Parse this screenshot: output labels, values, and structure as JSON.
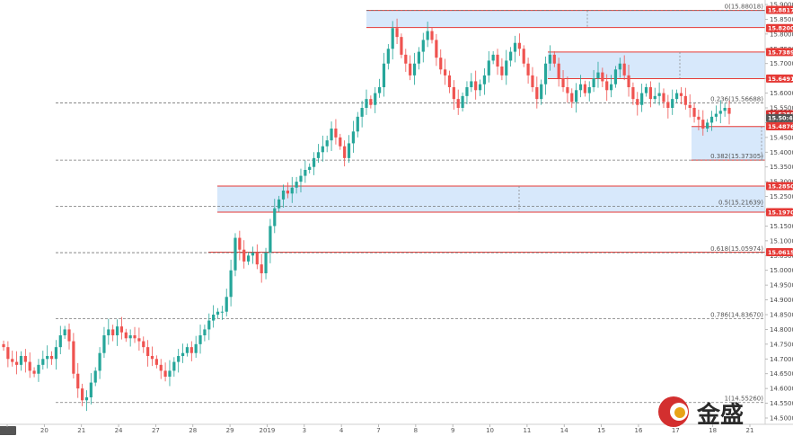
{
  "colors": {
    "up": "#26a69a",
    "down": "#ef5350",
    "zone_fill": "#d7e8fb",
    "zone_edge": "#e53935",
    "fib_line": "#777777",
    "tag_bg": "#e53935",
    "price_tag_bg": "#d32f2f",
    "last_tag_bg": "#555555",
    "logo_red": "#d32f2f",
    "logo_gold": "#e8a317"
  },
  "chart_data": {
    "type": "candlestick",
    "price_axis": {
      "ticks": [
        "15.90000",
        "15.85000",
        "15.80000",
        "15.75000",
        "15.70000",
        "15.65000",
        "15.60000",
        "15.55000",
        "15.50000",
        "15.45000",
        "15.40000",
        "15.35000",
        "15.30000",
        "15.25000",
        "15.20000",
        "15.15000",
        "15.10000",
        "15.05000",
        "15.00000",
        "14.95000",
        "14.90000",
        "14.85000",
        "14.80000",
        "14.75000",
        "14.70000",
        "14.65000",
        "14.60000",
        "14.55000",
        "14.50000"
      ],
      "range": [
        14.5,
        15.9
      ]
    },
    "time_axis": {
      "labels": [
        "05:00",
        "20",
        "21",
        "24",
        "27",
        "28",
        "29",
        "2019",
        "3",
        "4",
        "7",
        "8",
        "9",
        "10",
        "11",
        "14",
        "15",
        "16",
        "17",
        "18",
        "21"
      ],
      "highlighted": [
        "05:00"
      ]
    },
    "fib_levels": [
      {
        "label": "0(15.88018)",
        "value": 15.88018
      },
      {
        "label": "0.236(15.56688)",
        "value": 15.56688
      },
      {
        "label": "0.382(15.37305)",
        "value": 15.37305
      },
      {
        "label": "0.5(15.21639)",
        "value": 15.21639
      },
      {
        "label": "0.618(15.05974)",
        "value": 15.05974
      },
      {
        "label": "0.786(14.83670)",
        "value": 14.8367
      },
      {
        "label": "1(14.55260)",
        "value": 14.5526
      }
    ],
    "zones": [
      {
        "top": 15.88,
        "bottom": 15.822
      },
      {
        "top": 15.739,
        "bottom": 15.649
      },
      {
        "top": 15.487,
        "bottom": 15.373
      },
      {
        "top": 15.2851,
        "bottom": 15.197
      }
    ],
    "level_tags": [
      {
        "text": "15.88178",
        "value": 15.88178
      },
      {
        "text": "15.82001",
        "value": 15.82001
      },
      {
        "text": "15.73897",
        "value": 15.73897
      },
      {
        "text": "15.64911",
        "value": 15.64911
      },
      {
        "text": "15.52856",
        "value": 15.52856
      },
      {
        "text": "15.50:49",
        "value": 15.5155
      },
      {
        "text": "15.48765",
        "value": 15.48765
      },
      {
        "text": "15.28508",
        "value": 15.28508
      },
      {
        "text": "15.19704",
        "value": 15.19704
      },
      {
        "text": "15.06157",
        "value": 15.06157
      }
    ],
    "candles_close_path": [
      14.74,
      14.7,
      14.69,
      14.68,
      14.71,
      14.69,
      14.66,
      14.65,
      14.68,
      14.7,
      14.71,
      14.7,
      14.74,
      14.78,
      14.8,
      14.76,
      14.65,
      14.6,
      14.56,
      14.57,
      14.62,
      14.66,
      14.72,
      14.78,
      14.8,
      14.78,
      14.81,
      14.79,
      14.77,
      14.78,
      14.77,
      14.76,
      14.74,
      14.71,
      14.7,
      14.68,
      14.66,
      14.64,
      14.66,
      14.69,
      14.71,
      14.72,
      14.74,
      14.72,
      14.75,
      14.78,
      14.8,
      14.83,
      14.85,
      14.86,
      14.86,
      14.91,
      15.0,
      15.11,
      15.07,
      15.03,
      15.05,
      15.06,
      15.02,
      14.99,
      15.06,
      15.15,
      15.21,
      15.24,
      15.27,
      15.26,
      15.28,
      15.3,
      15.32,
      15.34,
      15.35,
      15.38,
      15.4,
      15.42,
      15.44,
      15.48,
      15.45,
      15.42,
      15.38,
      15.43,
      15.47,
      15.52,
      15.55,
      15.58,
      15.56,
      15.6,
      15.62,
      15.7,
      15.75,
      15.82,
      15.79,
      15.73,
      15.7,
      15.66,
      15.7,
      15.74,
      15.78,
      15.81,
      15.78,
      15.72,
      15.68,
      15.66,
      15.62,
      15.58,
      15.55,
      15.59,
      15.62,
      15.64,
      15.61,
      15.63,
      15.66,
      15.71,
      15.73,
      15.69,
      15.66,
      15.71,
      15.74,
      15.77,
      15.75,
      15.7,
      15.66,
      15.62,
      15.58,
      15.63,
      15.7,
      15.73,
      15.7,
      15.65,
      15.62,
      15.6,
      15.57,
      15.61,
      15.63,
      15.6,
      15.62,
      15.65,
      15.67,
      15.64,
      15.61,
      15.63,
      15.68,
      15.7,
      15.66,
      15.62,
      15.58,
      15.56,
      15.6,
      15.62,
      15.58,
      15.59,
      15.6,
      15.57,
      15.55,
      15.58,
      15.6,
      15.59,
      15.56,
      15.55,
      15.52,
      15.51,
      15.48,
      15.5,
      15.52,
      15.53,
      15.54,
      15.55,
      15.53
    ]
  },
  "logo": {
    "text": "金盛"
  }
}
